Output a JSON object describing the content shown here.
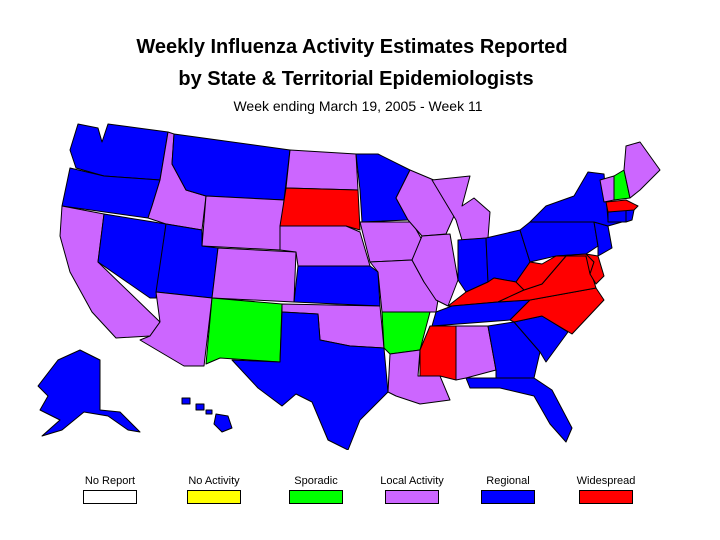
{
  "title": {
    "line1": "Weekly Influenza Activity Estimates Reported",
    "line2": "by State & Territorial Epidemiologists",
    "subtitle": "Week ending March 19, 2005 - Week 11"
  },
  "colors": {
    "no_report": "#ffffff",
    "no_activity": "#ffff00",
    "sporadic": "#00ff00",
    "local": "#cc66ff",
    "regional": "#0000ff",
    "widespread": "#ff0000"
  },
  "legend": [
    {
      "key": "no_report",
      "label": "No Report",
      "color": "#ffffff"
    },
    {
      "key": "no_activity",
      "label": "No Activity",
      "color": "#ffff00"
    },
    {
      "key": "sporadic",
      "label": "Sporadic",
      "color": "#00ff00"
    },
    {
      "key": "local",
      "label": "Local Activity",
      "color": "#cc66ff"
    },
    {
      "key": "regional",
      "label": "Regional",
      "color": "#0000ff"
    },
    {
      "key": "widespread",
      "label": "Widespread",
      "color": "#ff0000"
    }
  ],
  "states": {
    "WA": "regional",
    "OR": "regional",
    "CA": "local",
    "NV": "regional",
    "ID": "local",
    "MT": "regional",
    "WY": "local",
    "UT": "regional",
    "AZ": "local",
    "CO": "local",
    "NM": "sporadic",
    "ND": "local",
    "SD": "widespread",
    "NE": "local",
    "KS": "regional",
    "OK": "local",
    "TX": "regional",
    "MN": "regional",
    "IA": "local",
    "MO": "local",
    "AR": "sporadic",
    "LA": "local",
    "WI": "local",
    "IL": "local",
    "MI": "local",
    "IN": "regional",
    "OH": "regional",
    "KY": "widespread",
    "TN": "regional",
    "MS": "widespread",
    "AL": "local",
    "GA": "regional",
    "FL": "regional",
    "SC": "regional",
    "NC": "widespread",
    "VA": "widespread",
    "WV": "widespread",
    "MD": "widespread",
    "DE": "widespread",
    "PA": "regional",
    "NJ": "regional",
    "NY": "regional",
    "CT": "regional",
    "RI": "regional",
    "MA": "widespread",
    "VT": "local",
    "NH": "sporadic",
    "ME": "local",
    "AK": "regional",
    "HI": "regional"
  }
}
